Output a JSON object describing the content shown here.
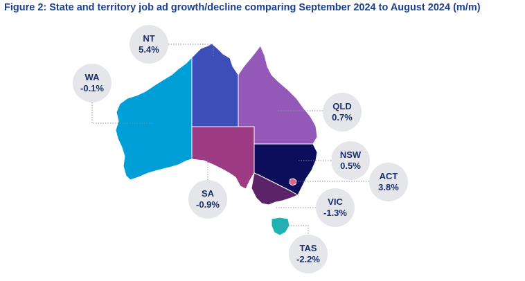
{
  "title": "Figure 2: State and territory job ad growth/decline comparing September 2024 to August 2024 (m/m)",
  "colors": {
    "title": "#1b3f8f",
    "label_text": "#1b2f6e",
    "bubble_bg": "#e4e6ea",
    "leader": "#8a8f99",
    "border": "#ffffff"
  },
  "states": [
    {
      "code": "wa",
      "label": "WA",
      "value": "-0.1%",
      "color": "#009fd8"
    },
    {
      "code": "nt",
      "label": "NT",
      "value": "5.4%",
      "color": "#3c4eb7"
    },
    {
      "code": "sa",
      "label": "SA",
      "value": "-0.9%",
      "color": "#9c3a84"
    },
    {
      "code": "qld",
      "label": "QLD",
      "value": "0.7%",
      "color": "#9459b8"
    },
    {
      "code": "nsw",
      "label": "NSW",
      "value": "0.5%",
      "color": "#0c0e5c"
    },
    {
      "code": "act",
      "label": "ACT",
      "value": "3.8%",
      "color": "#f05a87"
    },
    {
      "code": "vic",
      "label": "VIC",
      "value": "-1.3%",
      "color": "#5b2468"
    },
    {
      "code": "tas",
      "label": "TAS",
      "value": "-2.2%",
      "color": "#20b1b4"
    }
  ]
}
